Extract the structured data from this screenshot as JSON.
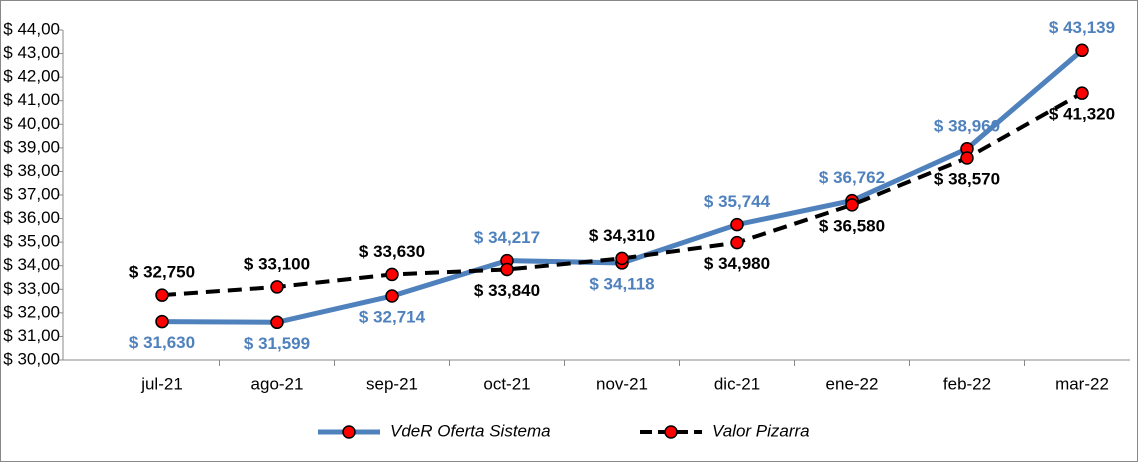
{
  "chart_data": {
    "type": "line",
    "categories": [
      "jul-21",
      "ago-21",
      "sep-21",
      "oct-21",
      "nov-21",
      "dic-21",
      "ene-22",
      "feb-22",
      "mar-22"
    ],
    "series": [
      {
        "name": "VdeR Oferta Sistema",
        "color": "#4f81bd",
        "values": [
          31.63,
          31.599,
          32.714,
          34.217,
          34.118,
          35.744,
          36.762,
          38.96,
          43.139
        ],
        "value_labels": [
          "$ 31,630",
          "$ 31,599",
          "$ 32,714",
          "$ 34,217",
          "$ 34,118",
          "$ 35,744",
          "$ 36,762",
          "$ 38,960",
          "$ 43,139"
        ]
      },
      {
        "name": "Valor Pizarra",
        "color": "#000000",
        "values": [
          32.75,
          33.1,
          33.63,
          33.84,
          34.31,
          34.98,
          36.58,
          38.57,
          41.32
        ],
        "value_labels": [
          "$ 32,750",
          "$ 33,100",
          "$ 33,630",
          "$ 33,840",
          "$ 34,310",
          "$ 34,980",
          "$ 36,580",
          "$ 38,570",
          "$ 41,320"
        ]
      }
    ],
    "ylim": [
      30,
      44
    ],
    "yticks": [
      {
        "value": 30,
        "label": "$ 30,00"
      },
      {
        "value": 31,
        "label": "$ 31,00"
      },
      {
        "value": 32,
        "label": "$ 32,00"
      },
      {
        "value": 33,
        "label": "$ 33,00"
      },
      {
        "value": 34,
        "label": "$ 34,00"
      },
      {
        "value": 35,
        "label": "$ 35,00"
      },
      {
        "value": 36,
        "label": "$ 36,00"
      },
      {
        "value": 37,
        "label": "$ 37,00"
      },
      {
        "value": 38,
        "label": "$ 38,00"
      },
      {
        "value": 39,
        "label": "$ 39,00"
      },
      {
        "value": 40,
        "label": "$ 40,00"
      },
      {
        "value": 41,
        "label": "$ 41,00"
      },
      {
        "value": 42,
        "label": "$ 42,00"
      },
      {
        "value": 43,
        "label": "$ 43,00"
      },
      {
        "value": 44,
        "label": "$ 44,00"
      }
    ],
    "grid": false,
    "legend": "bottom",
    "marker_color": "#ff0000"
  }
}
